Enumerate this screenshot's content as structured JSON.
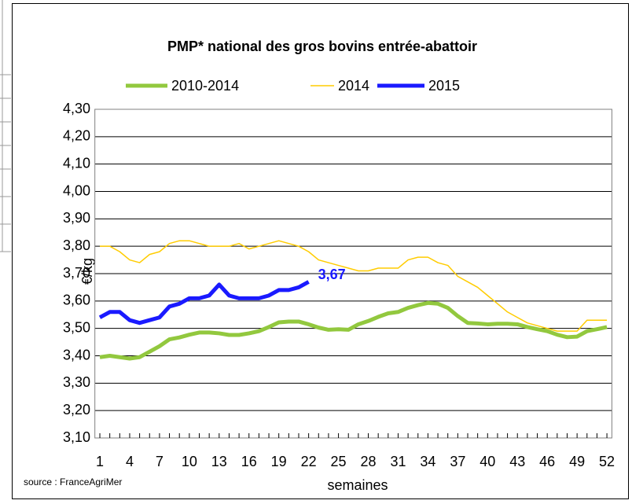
{
  "chart_data": {
    "type": "line",
    "title": "PMP* national des gros bovins entrée-abattoir",
    "y_label": "€/kg",
    "x_label": "semaines",
    "source": "source : FranceAgriMer",
    "x": [
      1,
      2,
      3,
      4,
      5,
      6,
      7,
      8,
      9,
      10,
      11,
      12,
      13,
      14,
      15,
      16,
      17,
      18,
      19,
      20,
      21,
      22,
      23,
      24,
      25,
      26,
      27,
      28,
      29,
      30,
      31,
      32,
      33,
      34,
      35,
      36,
      37,
      38,
      39,
      40,
      41,
      42,
      43,
      44,
      45,
      46,
      47,
      48,
      49,
      50,
      51,
      52
    ],
    "xlim": [
      0.5,
      52.5
    ],
    "xticks": [
      1,
      4,
      7,
      10,
      13,
      16,
      19,
      22,
      25,
      28,
      31,
      34,
      37,
      40,
      43,
      46,
      49,
      52
    ],
    "ylim": [
      3.1,
      4.3
    ],
    "yticks": [
      {
        "value": 3.1,
        "label": "3,10"
      },
      {
        "value": 3.2,
        "label": "3,20"
      },
      {
        "value": 3.3,
        "label": "3,30"
      },
      {
        "value": 3.4,
        "label": "3,40"
      },
      {
        "value": 3.5,
        "label": "3,50"
      },
      {
        "value": 3.6,
        "label": "3,60"
      },
      {
        "value": 3.7,
        "label": "3,70"
      },
      {
        "value": 3.8,
        "label": "3,80"
      },
      {
        "value": 3.9,
        "label": "3,90"
      },
      {
        "value": 4.0,
        "label": "4,00"
      },
      {
        "value": 4.1,
        "label": "4,10"
      },
      {
        "value": 4.2,
        "label": "4,20"
      },
      {
        "value": 4.3,
        "label": "4,30"
      }
    ],
    "grid": true,
    "legend": "top",
    "series": [
      {
        "name": "2010-2014",
        "color": "#92c83e",
        "width": 5,
        "values": [
          3.395,
          3.4,
          3.395,
          3.39,
          3.395,
          3.415,
          3.435,
          3.46,
          3.467,
          3.477,
          3.485,
          3.485,
          3.482,
          3.476,
          3.476,
          3.482,
          3.49,
          3.505,
          3.522,
          3.525,
          3.525,
          3.515,
          3.503,
          3.495,
          3.497,
          3.495,
          3.515,
          3.527,
          3.542,
          3.555,
          3.56,
          3.575,
          3.585,
          3.593,
          3.59,
          3.575,
          3.545,
          3.52,
          3.518,
          3.515,
          3.517,
          3.517,
          3.515,
          3.505,
          3.497,
          3.49,
          3.477,
          3.468,
          3.47,
          3.49,
          3.497,
          3.505
        ]
      },
      {
        "name": "2014",
        "color": "#ffcc00",
        "width": 1.5,
        "values": [
          3.8,
          3.8,
          3.78,
          3.75,
          3.74,
          3.77,
          3.78,
          3.81,
          3.82,
          3.82,
          3.81,
          3.8,
          3.8,
          3.8,
          3.81,
          3.79,
          3.8,
          3.81,
          3.82,
          3.81,
          3.8,
          3.78,
          3.75,
          3.74,
          3.73,
          3.72,
          3.71,
          3.71,
          3.72,
          3.72,
          3.72,
          3.75,
          3.76,
          3.76,
          3.74,
          3.73,
          3.69,
          3.67,
          3.65,
          3.62,
          3.59,
          3.56,
          3.54,
          3.52,
          3.51,
          3.5,
          3.49,
          3.49,
          3.49,
          3.53,
          3.53,
          3.53
        ]
      },
      {
        "name": "2015",
        "color": "#1a1aff",
        "width": 5,
        "values": [
          3.54,
          3.56,
          3.56,
          3.53,
          3.52,
          3.53,
          3.54,
          3.58,
          3.59,
          3.61,
          3.61,
          3.62,
          3.66,
          3.62,
          3.61,
          3.61,
          3.61,
          3.62,
          3.64,
          3.64,
          3.65,
          3.67,
          null,
          null,
          null,
          null,
          null,
          null,
          null,
          null,
          null,
          null,
          null,
          null,
          null,
          null,
          null,
          null,
          null,
          null,
          null,
          null,
          null,
          null,
          null,
          null,
          null,
          null,
          null,
          null,
          null,
          null
        ],
        "value_labels": [
          null,
          null,
          null,
          null,
          null,
          null,
          null,
          null,
          null,
          null,
          null,
          null,
          null,
          null,
          null,
          null,
          null,
          null,
          null,
          null,
          null,
          "3,67",
          null,
          null,
          null,
          null,
          null,
          null,
          null,
          null,
          null,
          null,
          null,
          null,
          null,
          null,
          null,
          null,
          null,
          null,
          null,
          null,
          null,
          null,
          null,
          null,
          null,
          null,
          null,
          null,
          null,
          null
        ]
      }
    ]
  }
}
